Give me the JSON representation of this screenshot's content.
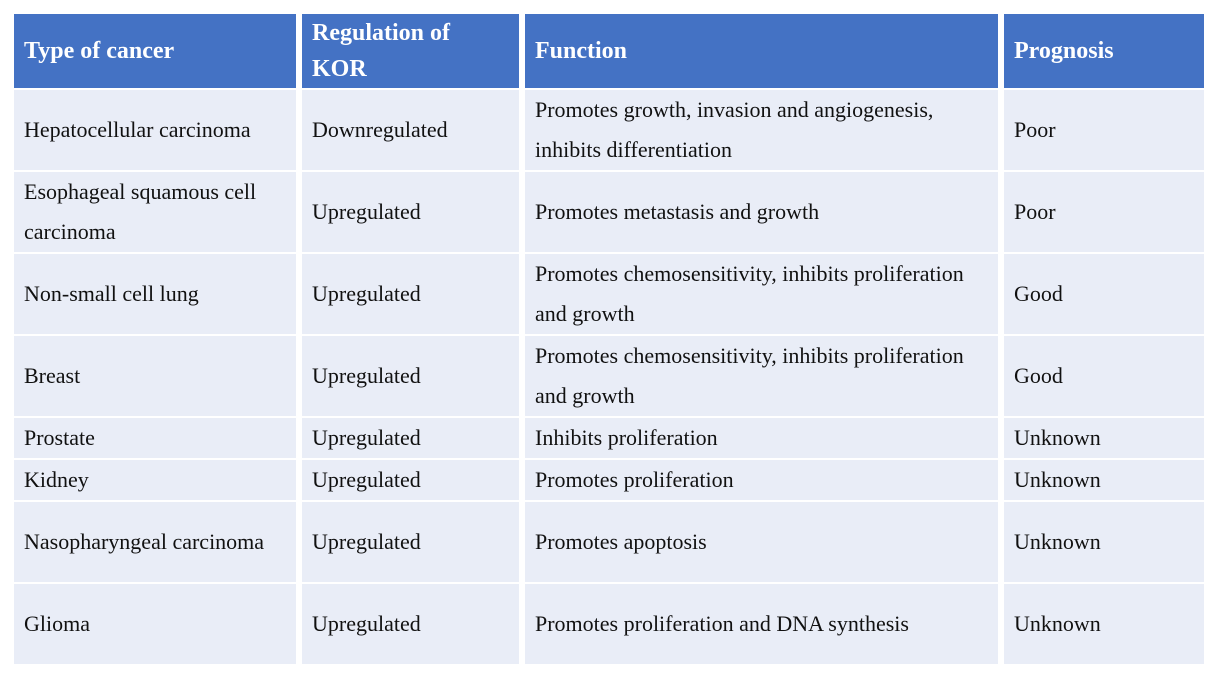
{
  "table": {
    "columns": [
      {
        "key": "type",
        "label": "Type of cancer"
      },
      {
        "key": "regulation",
        "label": "Regulation of KOR"
      },
      {
        "key": "function",
        "label": "Function"
      },
      {
        "key": "prognosis",
        "label": "Prognosis"
      }
    ],
    "rows": [
      {
        "type": "Hepatocellular carcinoma",
        "regulation": "Downregulated",
        "function": "Promotes growth, invasion and angiogenesis, inhibits differentiation",
        "prognosis": "Poor"
      },
      {
        "type": "Esophageal squamous cell carcinoma",
        "regulation": "Upregulated",
        "function": "Promotes metastasis and growth",
        "prognosis": "Poor"
      },
      {
        "type": "Non-small cell lung",
        "regulation": "Upregulated",
        "function": "Promotes chemosensitivity, inhibits proliferation and growth",
        "prognosis": "Good"
      },
      {
        "type": "Breast",
        "regulation": "Upregulated",
        "function": "Promotes chemosensitivity, inhibits proliferation and growth",
        "prognosis": "Good"
      },
      {
        "type": "Prostate",
        "regulation": "Upregulated",
        "function": "Inhibits proliferation",
        "prognosis": "Unknown"
      },
      {
        "type": "Kidney",
        "regulation": "Upregulated",
        "function": "Promotes proliferation",
        "prognosis": "Unknown"
      },
      {
        "type": "Nasopharyngeal carcinoma",
        "regulation": "Upregulated",
        "function": "Promotes apoptosis",
        "prognosis": "Unknown"
      },
      {
        "type": "Glioma",
        "regulation": "Upregulated",
        "function": "Promotes proliferation and DNA synthesis",
        "prognosis": "Unknown"
      }
    ],
    "colors": {
      "header_bg": "#4472C4",
      "header_text": "#FFFFFF",
      "row_bg": "#E9EDF7",
      "body_text": "#111111",
      "gap": "#FFFFFF"
    }
  }
}
